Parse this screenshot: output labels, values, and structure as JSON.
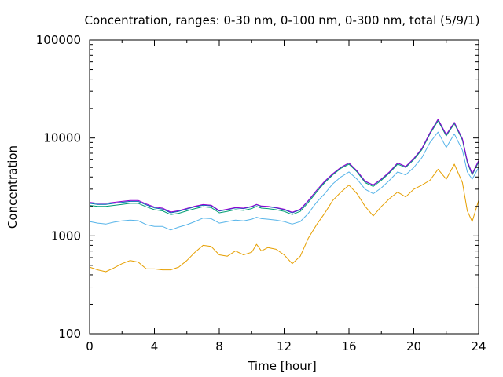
{
  "chart_data": {
    "type": "line",
    "title": "Concentration, ranges: 0-30 nm, 0-100 nm, 0-300 nm, total (5/9/1)",
    "xlabel": "Time [hour]",
    "ylabel": "Concentration",
    "xlim": [
      0,
      24
    ],
    "ylim": [
      100,
      100000
    ],
    "yscale": "log",
    "grid": false,
    "legend": "none",
    "x_ticks": [
      0,
      4,
      8,
      12,
      16,
      20,
      24
    ],
    "x_tick_labels": [
      "0",
      "4",
      "8",
      "12",
      "16",
      "20",
      "24"
    ],
    "y_ticks": [
      100,
      1000,
      10000,
      100000
    ],
    "y_tick_labels": [
      "100",
      "1000",
      "10000",
      "100000"
    ],
    "series": [
      {
        "color": "#e69f00",
        "x": [
          0,
          0.5,
          1,
          1.5,
          2,
          2.5,
          3,
          3.5,
          4,
          4.5,
          5,
          5.5,
          6,
          6.5,
          7,
          7.5,
          8,
          8.5,
          9,
          9.5,
          10,
          10.3,
          10.6,
          11,
          11.5,
          12,
          12.5,
          13,
          13.5,
          14,
          14.5,
          15,
          15.5,
          16,
          16.5,
          17,
          17.5,
          18,
          18.5,
          19,
          19.5,
          20,
          20.5,
          21,
          21.5,
          22,
          22.5,
          23,
          23.3,
          23.6,
          24
        ],
        "y": [
          480,
          450,
          430,
          470,
          520,
          560,
          540,
          460,
          460,
          450,
          450,
          480,
          560,
          680,
          800,
          780,
          640,
          620,
          700,
          640,
          680,
          820,
          700,
          760,
          730,
          640,
          520,
          620,
          950,
          1300,
          1700,
          2300,
          2800,
          3300,
          2700,
          2000,
          1600,
          2000,
          2400,
          2800,
          2500,
          3000,
          3300,
          3700,
          4800,
          3800,
          5400,
          3500,
          1800,
          1400,
          2300
        ]
      },
      {
        "color": "#56b4e9",
        "x": [
          0,
          0.5,
          1,
          1.5,
          2,
          2.5,
          3,
          3.5,
          4,
          4.5,
          5,
          5.5,
          6,
          6.5,
          7,
          7.5,
          8,
          8.5,
          9,
          9.5,
          10,
          10.3,
          10.6,
          11,
          11.5,
          12,
          12.5,
          13,
          13.5,
          14,
          14.5,
          15,
          15.5,
          16,
          16.5,
          17,
          17.5,
          18,
          18.5,
          19,
          19.5,
          20,
          20.5,
          21,
          21.5,
          22,
          22.5,
          23,
          23.3,
          23.6,
          24
        ],
        "y": [
          1400,
          1350,
          1320,
          1380,
          1420,
          1450,
          1430,
          1300,
          1250,
          1250,
          1150,
          1230,
          1300,
          1400,
          1520,
          1500,
          1350,
          1400,
          1450,
          1420,
          1480,
          1550,
          1500,
          1480,
          1450,
          1400,
          1320,
          1400,
          1700,
          2200,
          2700,
          3400,
          4000,
          4500,
          3800,
          3000,
          2700,
          3100,
          3700,
          4500,
          4200,
          5000,
          6300,
          9000,
          11500,
          8000,
          11000,
          7500,
          4500,
          3800,
          5000
        ]
      },
      {
        "color": "#009e73",
        "x": [
          0,
          0.5,
          1,
          1.5,
          2,
          2.5,
          3,
          3.5,
          4,
          4.5,
          5,
          5.5,
          6,
          6.5,
          7,
          7.5,
          8,
          8.5,
          9,
          9.5,
          10,
          10.3,
          10.6,
          11,
          11.5,
          12,
          12.5,
          13,
          13.5,
          14,
          14.5,
          15,
          15.5,
          16,
          16.5,
          17,
          17.5,
          18,
          18.5,
          19,
          19.5,
          20,
          20.5,
          21,
          21.5,
          22,
          22.5,
          23,
          23.3,
          23.6,
          24
        ],
        "y": [
          2050,
          2000,
          2000,
          2050,
          2100,
          2150,
          2150,
          1980,
          1850,
          1800,
          1650,
          1700,
          1800,
          1900,
          1980,
          1950,
          1720,
          1780,
          1850,
          1820,
          1900,
          2000,
          1920,
          1900,
          1850,
          1780,
          1650,
          1780,
          2200,
          2800,
          3500,
          4200,
          4900,
          5400,
          4500,
          3500,
          3200,
          3700,
          4400,
          5400,
          5000,
          6000,
          7600,
          11000,
          15000,
          10500,
          14000,
          9500,
          5600,
          4200,
          5700
        ]
      },
      {
        "color": "#0072b2",
        "x": [
          0,
          0.5,
          1,
          1.5,
          2,
          2.5,
          3,
          3.5,
          4,
          4.5,
          5,
          5.5,
          6,
          6.5,
          7,
          7.5,
          8,
          8.5,
          9,
          9.5,
          10,
          10.3,
          10.6,
          11,
          11.5,
          12,
          12.5,
          13,
          13.5,
          14,
          14.5,
          15,
          15.5,
          16,
          16.5,
          17,
          17.5,
          18,
          18.5,
          19,
          19.5,
          20,
          20.5,
          21,
          21.5,
          22,
          22.5,
          23,
          23.3,
          23.6,
          24
        ],
        "y": [
          2150,
          2100,
          2100,
          2150,
          2200,
          2250,
          2250,
          2070,
          1930,
          1880,
          1720,
          1780,
          1880,
          1980,
          2060,
          2030,
          1790,
          1850,
          1930,
          1900,
          1980,
          2080,
          2000,
          1980,
          1930,
          1850,
          1720,
          1850,
          2280,
          2900,
          3600,
          4300,
          5000,
          5550,
          4600,
          3600,
          3300,
          3800,
          4500,
          5550,
          5100,
          6150,
          7800,
          11300,
          15500,
          10800,
          14400,
          9800,
          5800,
          4300,
          5850
        ]
      },
      {
        "color": "#9400d3",
        "x": [
          0,
          0.5,
          1,
          1.5,
          2,
          2.5,
          3,
          3.5,
          4,
          4.5,
          5,
          5.5,
          6,
          6.5,
          7,
          7.5,
          8,
          8.5,
          9,
          9.5,
          10,
          10.3,
          10.6,
          11,
          11.5,
          12,
          12.5,
          13,
          13.5,
          14,
          14.5,
          15,
          15.5,
          16,
          16.5,
          17,
          17.5,
          18,
          18.5,
          19,
          19.5,
          20,
          20.5,
          21,
          21.5,
          22,
          22.5,
          23,
          23.3,
          23.6,
          24
        ],
        "y": [
          2200,
          2150,
          2150,
          2200,
          2250,
          2300,
          2300,
          2120,
          1970,
          1920,
          1750,
          1810,
          1910,
          2010,
          2090,
          2060,
          1810,
          1870,
          1950,
          1920,
          2000,
          2100,
          2020,
          2000,
          1950,
          1870,
          1740,
          1870,
          2300,
          2920,
          3620,
          4320,
          5020,
          5570,
          4620,
          3620,
          3320,
          3820,
          4520,
          5570,
          5120,
          6170,
          7820,
          11320,
          15520,
          10820,
          14420,
          9820,
          5820,
          4320,
          5870
        ]
      }
    ]
  }
}
